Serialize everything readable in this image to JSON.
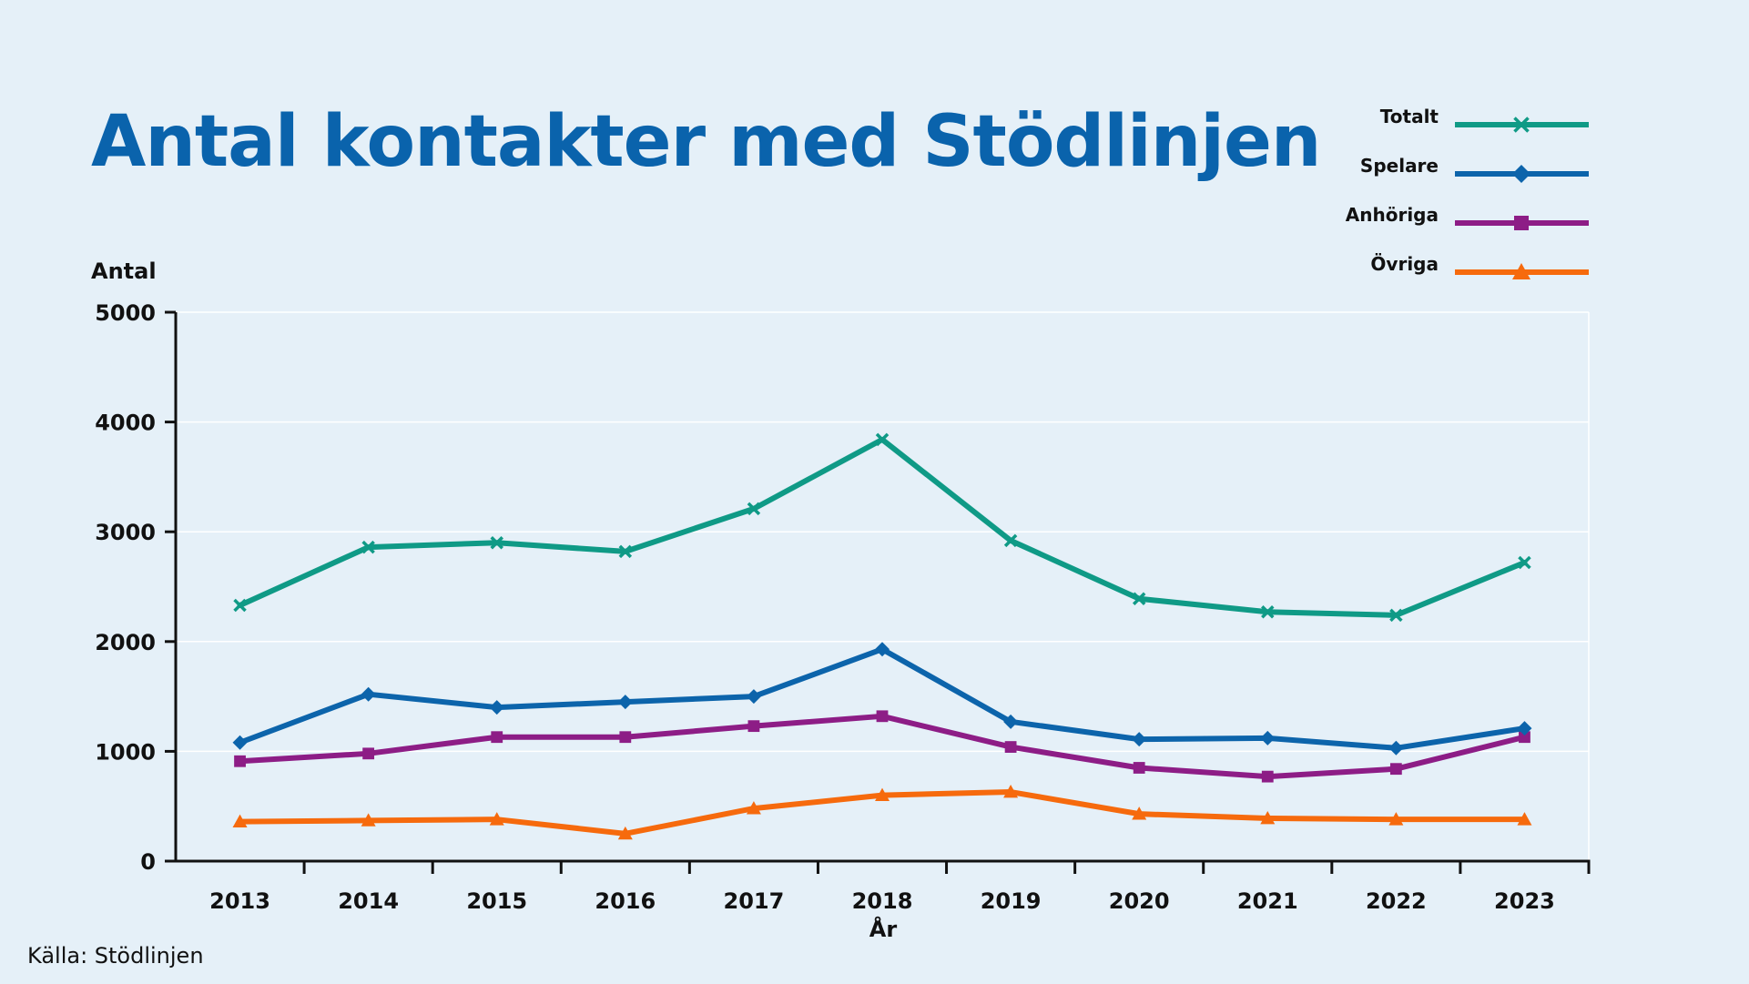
{
  "chart_data": {
    "type": "line",
    "title": "Antal kontakter med Stödlinjen",
    "xlabel": "År",
    "ylabel": "Antal",
    "source": "Källa: Stödlinjen",
    "categories": [
      "2013",
      "2014",
      "2015",
      "2016",
      "2017",
      "2018",
      "2019",
      "2020",
      "2021",
      "2022",
      "2023"
    ],
    "ylim": [
      0,
      5000
    ],
    "yticks": [
      "0",
      "1000",
      "2000",
      "3000",
      "4000",
      "5000"
    ],
    "grid": "horizontal",
    "legend_position": "top-right",
    "series": [
      {
        "name": "Totalt",
        "color": "#0f9a86",
        "marker": "x-icon",
        "values": [
          2330,
          2860,
          2900,
          2820,
          3210,
          3840,
          2920,
          2390,
          2270,
          2240,
          2720
        ]
      },
      {
        "name": "Spelare",
        "color": "#0c64ab",
        "marker": "diamond-icon",
        "values": [
          1080,
          1520,
          1400,
          1450,
          1500,
          1930,
          1270,
          1110,
          1120,
          1030,
          1210
        ]
      },
      {
        "name": "Anhöriga",
        "color": "#8d1d86",
        "marker": "square-icon",
        "values": [
          910,
          980,
          1130,
          1130,
          1230,
          1320,
          1040,
          850,
          770,
          840,
          1130
        ]
      },
      {
        "name": "Övriga",
        "color": "#f66a0d",
        "marker": "triangle-icon",
        "values": [
          360,
          370,
          380,
          250,
          480,
          600,
          630,
          430,
          390,
          380,
          380
        ]
      }
    ]
  }
}
